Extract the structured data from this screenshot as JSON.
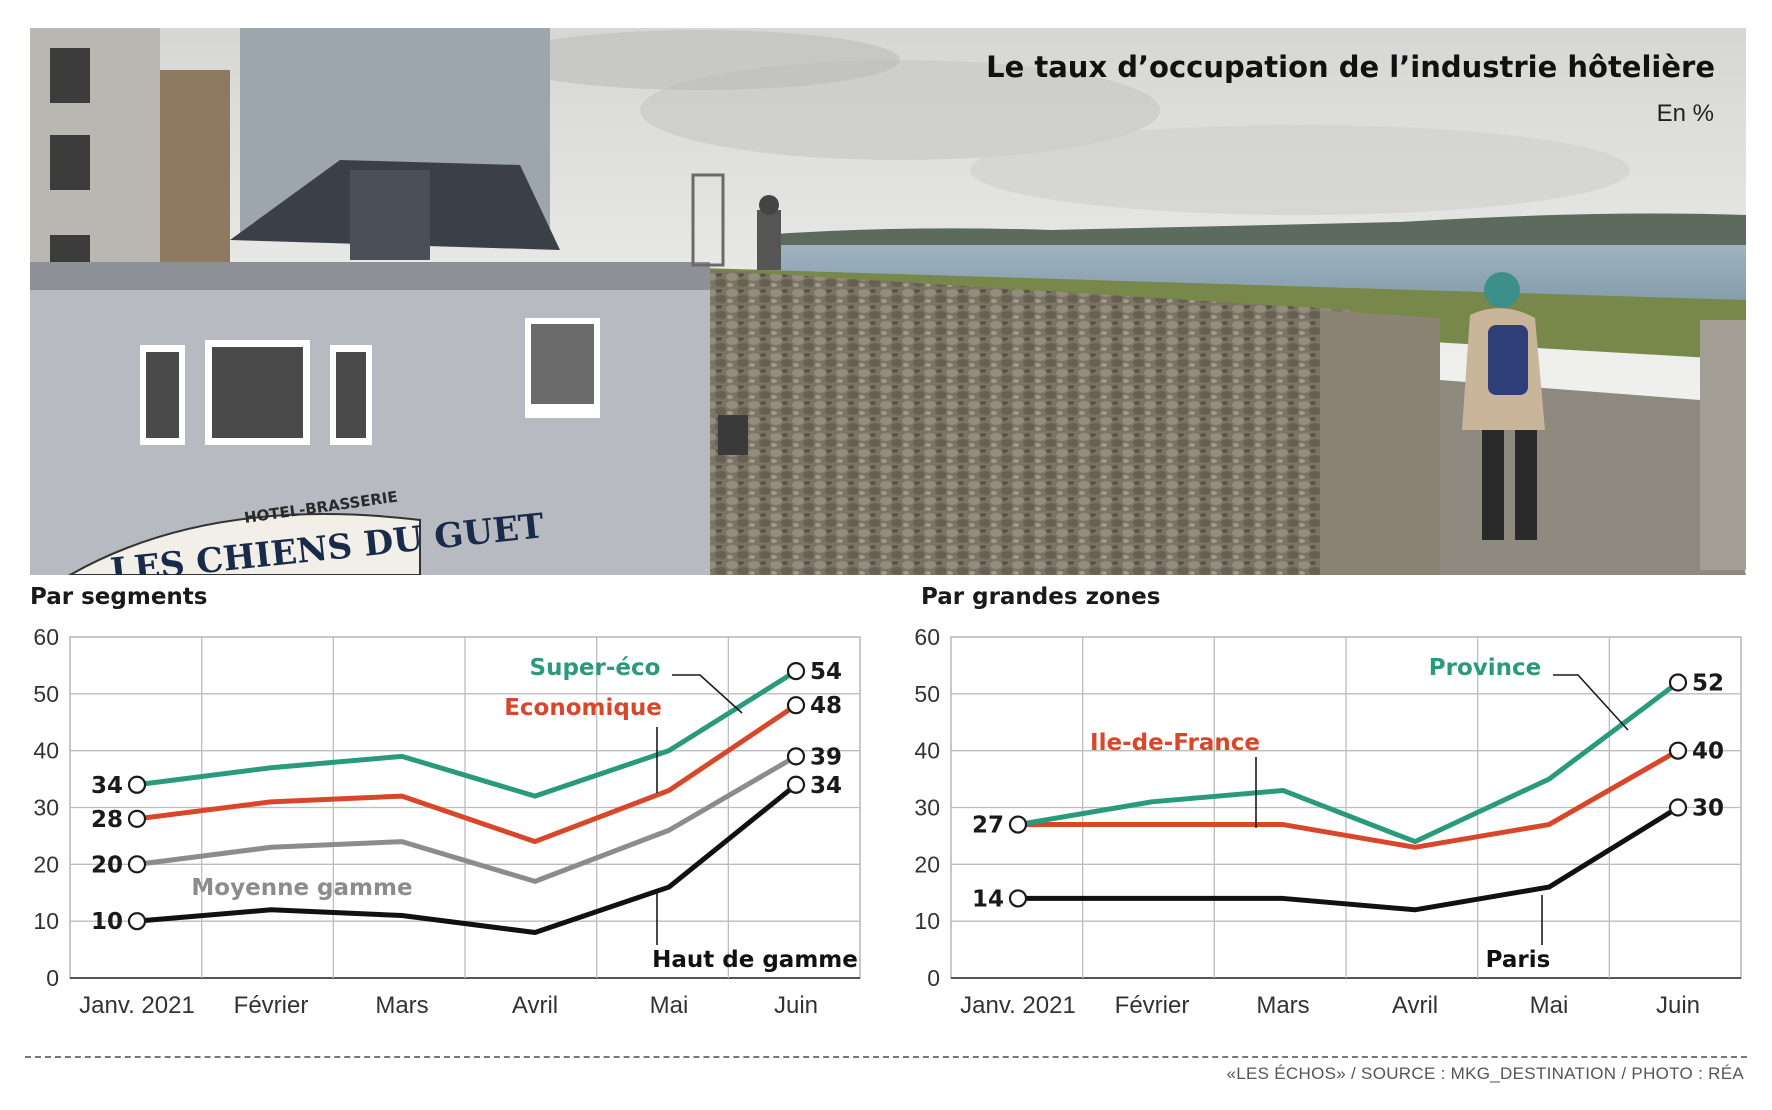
{
  "header": {
    "title": "Le taux d’occupation de l’industrie hôtelière",
    "subtitle": "En %"
  },
  "photo": {
    "sign_line1": "HOTEL-BRASSERIE",
    "sign_line2": "LES CHIENS DU GUET"
  },
  "chart_data": [
    {
      "type": "line",
      "title": "Par segments",
      "categories": [
        "Janv. 2021",
        "Février",
        "Mars",
        "Avril",
        "Mai",
        "Juin"
      ],
      "ylim": [
        0,
        60
      ],
      "yticks": [
        0,
        10,
        20,
        30,
        40,
        50,
        60
      ],
      "grid": true,
      "series": [
        {
          "name": "Super-éco",
          "color": "#2a9a7c",
          "values": [
            34,
            37,
            39,
            32,
            40,
            54
          ],
          "labels": {
            "start": "34",
            "end": "54"
          }
        },
        {
          "name": "Economique",
          "color": "#d9472b",
          "values": [
            28,
            31,
            32,
            24,
            33,
            48
          ],
          "labels": {
            "start": "28",
            "end": "48"
          }
        },
        {
          "name": "Moyenne gamme",
          "color": "#8c8c8c",
          "values": [
            20,
            23,
            24,
            17,
            26,
            39
          ],
          "labels": {
            "start": "20",
            "end": "39"
          }
        },
        {
          "name": "Haut de gamme",
          "color": "#111111",
          "values": [
            10,
            12,
            11,
            8,
            16,
            34
          ],
          "labels": {
            "start": "10",
            "end": "34"
          }
        }
      ]
    },
    {
      "type": "line",
      "title": "Par grandes zones",
      "categories": [
        "Janv. 2021",
        "Février",
        "Mars",
        "Avril",
        "Mai",
        "Juin"
      ],
      "ylim": [
        0,
        60
      ],
      "yticks": [
        0,
        10,
        20,
        30,
        40,
        50,
        60
      ],
      "grid": true,
      "series": [
        {
          "name": "Province",
          "color": "#2a9a7c",
          "values": [
            27,
            31,
            33,
            24,
            35,
            52
          ],
          "labels": {
            "start": "",
            "end": "52"
          }
        },
        {
          "name": "Ile-de-France",
          "color": "#d9472b",
          "values": [
            27,
            27,
            27,
            23,
            27,
            40
          ],
          "labels": {
            "start": "27",
            "end": "40"
          }
        },
        {
          "name": "Paris",
          "color": "#111111",
          "values": [
            14,
            14,
            14,
            12,
            16,
            30
          ],
          "labels": {
            "start": "14",
            "end": "30"
          }
        }
      ]
    }
  ],
  "footer": {
    "credit": "«LES ÉCHOS» / SOURCE : MKG_DESTINATION / PHOTO : RÉA"
  }
}
